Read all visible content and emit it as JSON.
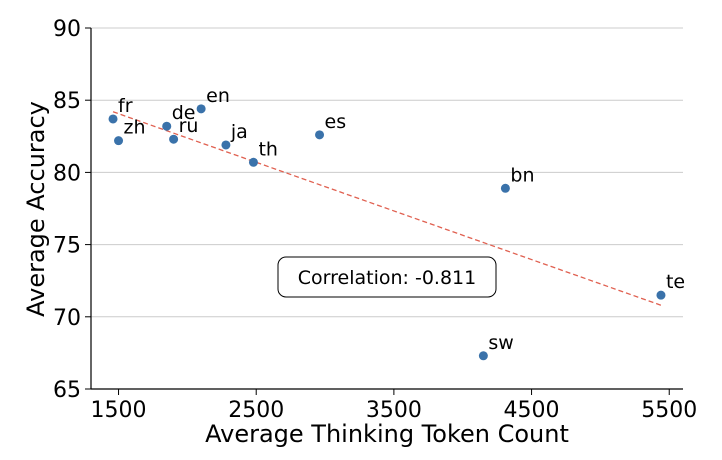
{
  "chart_data": {
    "type": "scatter",
    "xlabel": "Average Thinking Token Count",
    "ylabel": "Average Accuracy",
    "xlim": [
      1300,
      5600
    ],
    "ylim": [
      65,
      90
    ],
    "xticks": [
      1500,
      2500,
      3500,
      4500,
      5500
    ],
    "yticks": [
      65,
      70,
      75,
      80,
      85,
      90
    ],
    "grid": "horizontal",
    "points": [
      {
        "label": "fr",
        "x": 1460,
        "y": 83.7
      },
      {
        "label": "zh",
        "x": 1500,
        "y": 82.2
      },
      {
        "label": "de",
        "x": 1850,
        "y": 83.2
      },
      {
        "label": "ru",
        "x": 1900,
        "y": 82.3
      },
      {
        "label": "en",
        "x": 2100,
        "y": 84.4
      },
      {
        "label": "ja",
        "x": 2280,
        "y": 81.9
      },
      {
        "label": "th",
        "x": 2480,
        "y": 80.7
      },
      {
        "label": "es",
        "x": 2960,
        "y": 82.6
      },
      {
        "label": "bn",
        "x": 4310,
        "y": 78.9
      },
      {
        "label": "sw",
        "x": 4150,
        "y": 67.3
      },
      {
        "label": "te",
        "x": 5440,
        "y": 71.5
      }
    ],
    "trendline": {
      "x": [
        1460,
        5440
      ],
      "y": [
        84.2,
        70.8
      ],
      "style": "dashed"
    },
    "annotation": "Correlation: -0.811",
    "colors": {
      "points": "#3a72aa",
      "trendline": "#e06050",
      "grid": "#cccccc"
    }
  }
}
